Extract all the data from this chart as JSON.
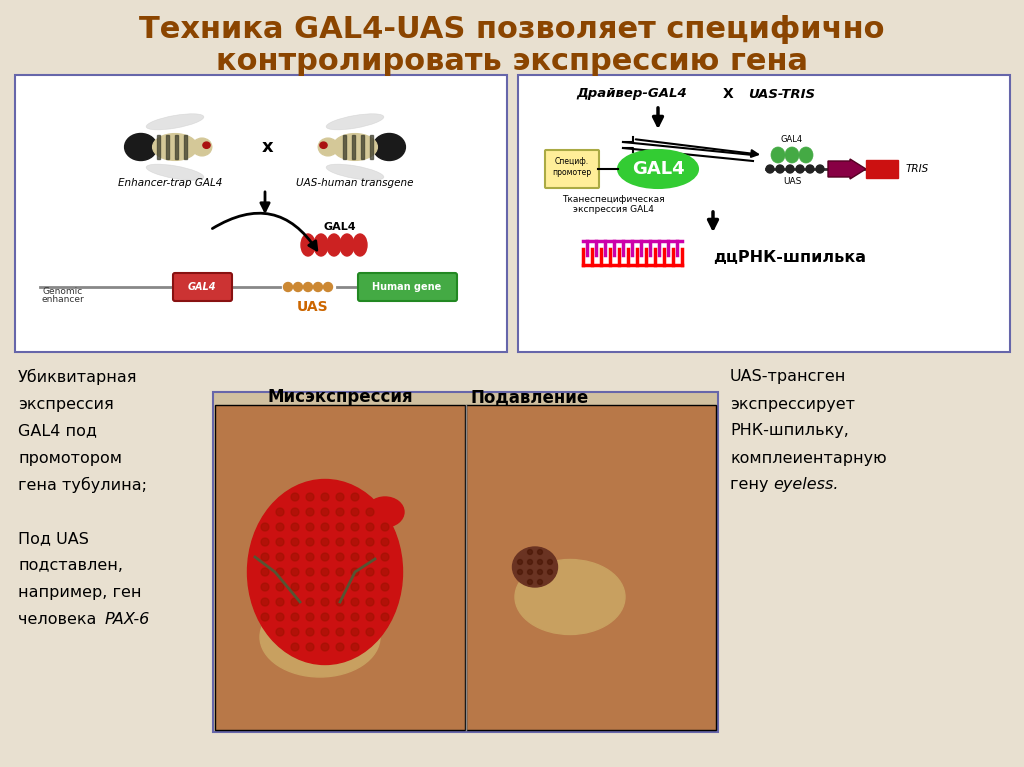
{
  "background_color": "#e8e0d0",
  "title_line1": "Техника GAL4-UAS позволяет специфично",
  "title_line2": "контролировать экспрессию гена",
  "title_color": "#8B4500",
  "title_fontsize": 22,
  "panel_border": "#6666aa",
  "bottom_label1": "Мисэкспрессия",
  "bottom_label2": "Подавление",
  "left_text_lines": [
    "Убиквитарная",
    "экспрессия",
    "GAL4 под",
    "промотором",
    "гена тубулина;",
    "",
    "Под UAS",
    "подставлен,",
    "например, ген",
    "человека PAX-6"
  ],
  "right_text_lines": [
    "UAS-трансген",
    "экспрессирует",
    "РНК-шпильку,",
    "комплеиентарную",
    "гену eyeless."
  ]
}
